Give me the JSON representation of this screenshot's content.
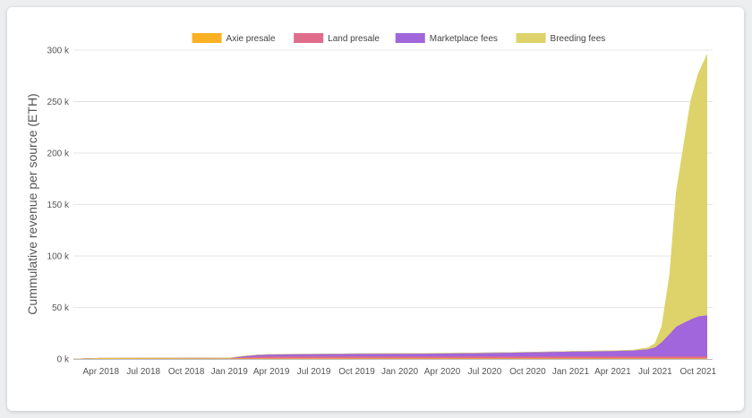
{
  "chart_data": {
    "type": "area",
    "stacked": true,
    "title": "",
    "xlabel": "",
    "ylabel": "Cummulative revenue per source (ETH)",
    "ylim": [
      0,
      300000
    ],
    "yticks": [
      0,
      50000,
      100000,
      150000,
      200000,
      250000,
      300000
    ],
    "ytick_labels": [
      "0 k",
      "50 k",
      "100 k",
      "150 k",
      "200 k",
      "250 k",
      "300 k"
    ],
    "xlim": [
      "2018-02-01",
      "2021-11-01"
    ],
    "xticks": [
      "2018-04-01",
      "2018-07-01",
      "2018-10-01",
      "2019-01-01",
      "2019-04-01",
      "2019-07-01",
      "2019-10-01",
      "2020-01-01",
      "2020-04-01",
      "2020-07-01",
      "2020-10-01",
      "2021-01-01",
      "2021-04-01",
      "2021-07-01",
      "2021-10-01"
    ],
    "xtick_labels": [
      "Apr 2018",
      "Jul 2018",
      "Oct 2018",
      "Jan 2019",
      "Apr 2019",
      "Jul 2019",
      "Oct 2019",
      "Jan 2020",
      "Apr 2020",
      "Jul 2020",
      "Oct 2020",
      "Jan 2021",
      "Apr 2021",
      "Jul 2021",
      "Oct 2021"
    ],
    "legend_position": "top",
    "grid": true,
    "x": [
      "2018-02-01",
      "2018-03-01",
      "2018-04-01",
      "2018-07-01",
      "2018-10-01",
      "2019-01-01",
      "2019-02-01",
      "2019-03-01",
      "2019-04-01",
      "2019-07-01",
      "2019-10-01",
      "2020-01-01",
      "2020-04-01",
      "2020-07-01",
      "2020-10-01",
      "2021-01-01",
      "2021-04-01",
      "2021-05-15",
      "2021-06-15",
      "2021-07-01",
      "2021-07-15",
      "2021-08-01",
      "2021-08-15",
      "2021-09-01",
      "2021-09-15",
      "2021-10-01",
      "2021-10-20"
    ],
    "series": [
      {
        "name": "Axie presale",
        "color": "#fbb124",
        "values": [
          0,
          400,
          700,
          800,
          800,
          800,
          800,
          800,
          800,
          800,
          800,
          800,
          800,
          800,
          800,
          800,
          800,
          800,
          800,
          800,
          800,
          800,
          800,
          800,
          800,
          800,
          800
        ]
      },
      {
        "name": "Land presale",
        "color": "#e06c8c",
        "values": [
          0,
          0,
          0,
          0,
          0,
          0,
          800,
          1500,
          1700,
          1800,
          1800,
          1800,
          1800,
          1800,
          1800,
          1800,
          1800,
          1800,
          1800,
          1800,
          1800,
          1800,
          1800,
          1800,
          1800,
          1800,
          1800
        ]
      },
      {
        "name": "Marketplace fees",
        "color": "#a166db",
        "values": [
          0,
          0,
          0,
          0,
          100,
          200,
          1200,
          1600,
          2000,
          2200,
          2500,
          2700,
          2900,
          3300,
          3900,
          4700,
          5300,
          5800,
          7000,
          9000,
          14000,
          22000,
          29000,
          33000,
          36000,
          39000,
          40000
        ]
      },
      {
        "name": "Breeding fees",
        "color": "#ddd36a",
        "values": [
          0,
          0,
          0,
          0,
          0,
          0,
          0,
          0,
          0,
          0,
          0,
          0,
          0,
          0,
          0,
          0,
          100,
          300,
          1200,
          3500,
          15000,
          57000,
          130000,
          175000,
          212000,
          235000,
          253000
        ]
      }
    ]
  }
}
